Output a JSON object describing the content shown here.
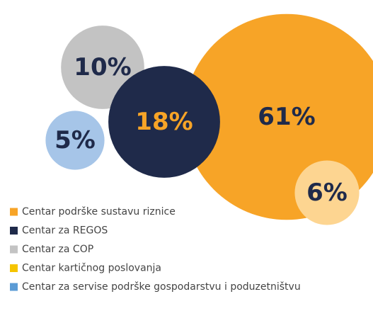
{
  "chart_data": {
    "type": "packed_bubble",
    "series": [
      {
        "name": "Centar podrške sustavu riznice",
        "color": "#f7a427",
        "legend_color": "#f7a427",
        "values": [
          61
        ],
        "value_labels": [
          "61%"
        ]
      },
      {
        "name": "Centar za REGOS",
        "color": "#1f2a4a",
        "legend_color": "#1f2a4a",
        "values": [
          18
        ],
        "value_labels": [
          "18%"
        ]
      },
      {
        "name": "Centar za COP",
        "color": "#c3c3c3",
        "legend_color": "#c3c3c3",
        "values": [
          10
        ],
        "value_labels": [
          "10%"
        ]
      },
      {
        "name": "Centar kartičnog poslovanja",
        "color": "#fdd591",
        "legend_color": "#f5c400",
        "values": [
          6
        ],
        "value_labels": [
          "6%"
        ]
      },
      {
        "name": "Centar za servise podrške gospodarstvu i poduzetništvu",
        "color": "#a6c5e8",
        "legend_color": "#5b9bd5",
        "values": [
          5
        ],
        "value_labels": [
          "5%"
        ]
      }
    ],
    "legend": "bottom-left"
  }
}
